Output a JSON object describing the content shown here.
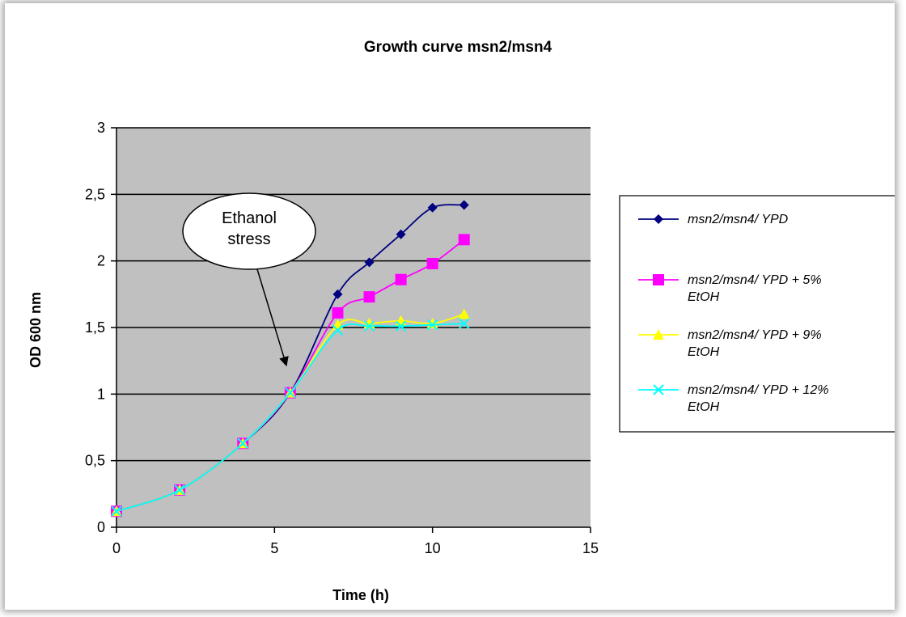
{
  "chart_data": {
    "type": "line",
    "title": "Growth curve msn2/msn4",
    "xlabel": "Time (h)",
    "ylabel": "OD 600 nm",
    "xlim": [
      0,
      15
    ],
    "ylim": [
      0,
      3
    ],
    "x_ticks": [
      0,
      5,
      10,
      15
    ],
    "y_ticks": [
      0,
      0.5,
      1,
      1.5,
      2,
      2.5,
      3
    ],
    "x_tick_labels": [
      "0",
      "5",
      "10",
      "15"
    ],
    "y_tick_labels": [
      "0",
      "0,5",
      "1",
      "1,5",
      "2",
      "2,5",
      "3"
    ],
    "grid": "horizontal",
    "plot_background": "#c0c0c0",
    "legend_position": "right",
    "annotation": {
      "lines": [
        "Ethanol",
        "stress"
      ],
      "points_to": {
        "x": 5.5,
        "y": 1.0
      }
    },
    "series": [
      {
        "name_lines": [
          "msn2/msn4/ YPD"
        ],
        "color": "#000080",
        "marker": "diamond",
        "x": [
          0,
          2,
          4,
          5.5,
          7,
          8,
          9,
          10,
          11
        ],
        "y": [
          0.12,
          0.28,
          0.63,
          1.01,
          1.75,
          1.99,
          2.2,
          2.4,
          2.42
        ]
      },
      {
        "name_lines": [
          "msn2/msn4/ YPD + 5%",
          "EtOH"
        ],
        "color": "#ff00ff",
        "marker": "square",
        "x": [
          0,
          2,
          4,
          5.5,
          7,
          8,
          9,
          10,
          11
        ],
        "y": [
          0.12,
          0.28,
          0.63,
          1.01,
          1.61,
          1.73,
          1.86,
          1.98,
          2.16
        ]
      },
      {
        "name_lines": [
          "msn2/msn4/ YPD + 9%",
          "EtOH"
        ],
        "color": "#ffff00",
        "marker": "triangle",
        "x": [
          0,
          2,
          4,
          5.5,
          7,
          8,
          9,
          10,
          11
        ],
        "y": [
          0.12,
          0.28,
          0.63,
          1.01,
          1.52,
          1.53,
          1.55,
          1.53,
          1.6
        ]
      },
      {
        "name_lines": [
          "msn2/msn4/ YPD + 12%",
          "EtOH"
        ],
        "color": "#00ffff",
        "marker": "x",
        "x": [
          0,
          2,
          4,
          5.5,
          7,
          8,
          9,
          10,
          11
        ],
        "y": [
          0.12,
          0.28,
          0.63,
          1.01,
          1.48,
          1.51,
          1.51,
          1.52,
          1.53
        ]
      }
    ]
  }
}
